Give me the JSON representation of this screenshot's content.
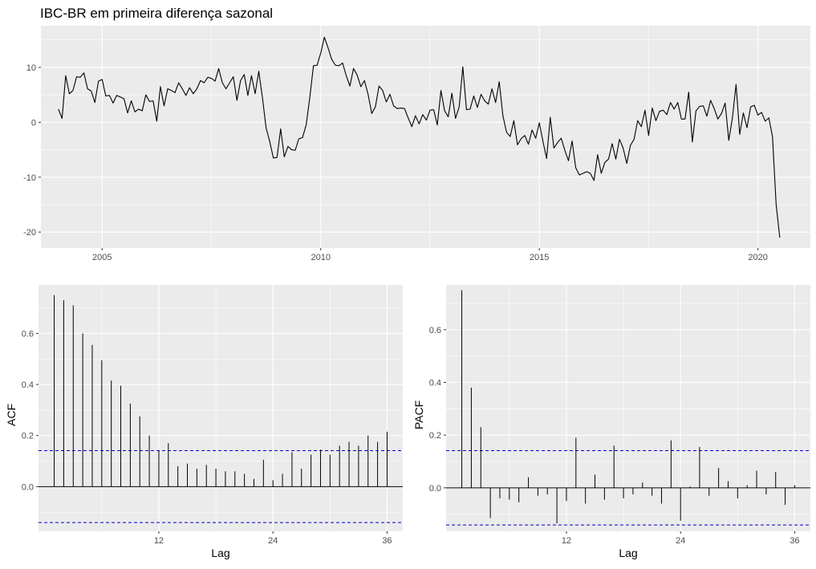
{
  "colors": {
    "panel": "#ebebeb",
    "grid": "#ffffff",
    "line": "#000000",
    "ci": "#0000cc",
    "tick_text": "#4d4d4d"
  },
  "chart_data": [
    {
      "type": "line",
      "title": "IBC-BR em primeira diferença sazonal",
      "xlabel": "",
      "ylabel": "",
      "xlim": [
        2003.6,
        2021.2
      ],
      "ylim": [
        -22.9,
        17.6
      ],
      "x_ticks": [
        2005,
        2010,
        2015,
        2020
      ],
      "y_ticks": [
        -20,
        -10,
        0,
        10
      ],
      "grid": true,
      "series": [
        {
          "x_start": 2004.0,
          "step": 0.0833333,
          "frequency": "monthly",
          "values": [
            2.4,
            0.7,
            8.5,
            5.2,
            5.8,
            8.3,
            8.2,
            9.0,
            6.1,
            5.7,
            3.6,
            7.5,
            7.8,
            4.8,
            4.9,
            3.5,
            4.9,
            4.6,
            4.3,
            1.7,
            3.9,
            1.9,
            2.4,
            2.1,
            5.0,
            3.8,
            3.9,
            0.2,
            6.5,
            3.0,
            6.1,
            5.8,
            5.4,
            7.2,
            6.1,
            4.9,
            6.3,
            5.2,
            6.1,
            7.6,
            7.2,
            8.2,
            8.0,
            7.5,
            9.8,
            7.2,
            6.1,
            7.2,
            8.3,
            4.0,
            7.6,
            8.7,
            4.9,
            8.5,
            5.2,
            9.3,
            4.5,
            -1.0,
            -3.5,
            -6.5,
            -6.4,
            -1.2,
            -6.3,
            -4.4,
            -5.0,
            -5.1,
            -3.0,
            -2.8,
            -0.5,
            4.5,
            10.3,
            10.4,
            12.6,
            15.5,
            13.6,
            11.5,
            10.4,
            10.3,
            10.8,
            8.5,
            6.6,
            9.8,
            8.6,
            6.5,
            7.6,
            5.1,
            1.6,
            2.8,
            6.6,
            5.8,
            3.7,
            5.1,
            3.0,
            2.5,
            2.6,
            2.5,
            0.8,
            -0.8,
            1.2,
            -0.3,
            1.4,
            0.4,
            2.2,
            2.3,
            -0.5,
            5.8,
            2.1,
            1.0,
            5.3,
            0.7,
            2.8,
            10.1,
            2.3,
            2.4,
            4.8,
            2.7,
            5.1,
            3.9,
            3.3,
            6.1,
            3.6,
            7.4,
            1.2,
            -1.8,
            -2.6,
            0.3,
            -4.1,
            -3.0,
            -2.4,
            -4.0,
            -1.4,
            -2.9,
            -0.1,
            -3.5,
            -6.6,
            0.9,
            -4.7,
            -3.7,
            -2.9,
            -5.1,
            -7.0,
            -3.4,
            -8.3,
            -9.6,
            -9.3,
            -9.0,
            -9.3,
            -10.6,
            -5.9,
            -9.3,
            -7.3,
            -6.7,
            -3.9,
            -6.7,
            -3.1,
            -4.7,
            -7.5,
            -4.2,
            -3.1,
            0.3,
            -0.8,
            2.2,
            -2.4,
            2.6,
            0.3,
            2.0,
            2.2,
            1.4,
            3.6,
            2.4,
            3.6,
            0.6,
            0.6,
            5.5,
            -3.6,
            2.1,
            2.9,
            3.0,
            1.1,
            4.0,
            2.5,
            0.6,
            1.6,
            3.5,
            -3.3,
            0.8,
            6.9,
            -2.2,
            1.7,
            -1.0,
            2.8,
            3.1,
            1.3,
            1.8,
            0.2,
            0.8,
            -2.6,
            -15.0,
            -21.0
          ]
        }
      ]
    },
    {
      "type": "bar",
      "subtype": "acf",
      "xlabel": "Lag",
      "ylabel": "ACF",
      "xlim": [
        -0.65,
        37.65
      ],
      "ylim": [
        -0.175,
        0.79
      ],
      "x_ticks": [
        12,
        24,
        36
      ],
      "y_ticks": [
        0.0,
        0.2,
        0.4,
        0.6
      ],
      "confidence_bound": 0.141,
      "lags": [
        1,
        2,
        3,
        4,
        5,
        6,
        7,
        8,
        9,
        10,
        11,
        12,
        13,
        14,
        15,
        16,
        17,
        18,
        19,
        20,
        21,
        22,
        23,
        24,
        25,
        26,
        27,
        28,
        29,
        30,
        31,
        32,
        33,
        34,
        35,
        36
      ],
      "values": [
        0.75,
        0.73,
        0.71,
        0.6,
        0.555,
        0.495,
        0.415,
        0.395,
        0.325,
        0.275,
        0.2,
        0.14,
        0.17,
        0.08,
        0.09,
        0.07,
        0.085,
        0.07,
        0.06,
        0.06,
        0.05,
        0.03,
        0.105,
        0.025,
        0.05,
        0.135,
        0.07,
        0.125,
        0.145,
        0.125,
        0.16,
        0.175,
        0.16,
        0.2,
        0.175,
        0.215
      ]
    },
    {
      "type": "bar",
      "subtype": "pacf",
      "xlabel": "Lag",
      "ylabel": "PACF",
      "xlim": [
        -0.65,
        37.65
      ],
      "ylim": [
        -0.165,
        0.77
      ],
      "x_ticks": [
        12,
        24,
        36
      ],
      "y_ticks": [
        0.0,
        0.2,
        0.4,
        0.6
      ],
      "confidence_bound": 0.141,
      "lags": [
        1,
        2,
        3,
        4,
        5,
        6,
        7,
        8,
        9,
        10,
        11,
        12,
        13,
        14,
        15,
        16,
        17,
        18,
        19,
        20,
        21,
        22,
        23,
        24,
        25,
        26,
        27,
        28,
        29,
        30,
        31,
        32,
        33,
        34,
        35,
        36
      ],
      "values": [
        0.75,
        0.38,
        0.23,
        -0.115,
        -0.04,
        -0.045,
        -0.055,
        0.04,
        -0.03,
        -0.025,
        -0.135,
        -0.05,
        0.19,
        -0.06,
        0.05,
        -0.045,
        0.16,
        -0.04,
        -0.025,
        0.02,
        -0.03,
        -0.06,
        0.18,
        -0.125,
        0.005,
        0.155,
        -0.03,
        0.075,
        0.025,
        -0.04,
        0.01,
        0.065,
        -0.025,
        0.06,
        -0.065,
        0.01
      ]
    }
  ]
}
